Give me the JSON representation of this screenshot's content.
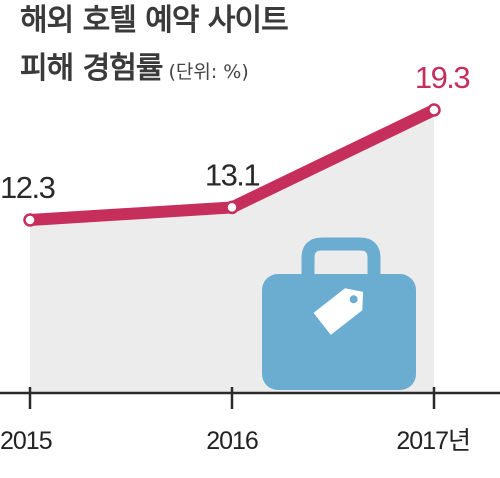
{
  "title": {
    "line1": "해외 호텔 예약 사이트",
    "line2": "피해 경험률",
    "unit": "(단위: %)"
  },
  "colors": {
    "line": "#c62e5c",
    "area": "#ececec",
    "axis": "#2a2a2a",
    "label_normal": "#2a2a2a",
    "label_highlight": "#c62e5c",
    "icon": "#6aadd0"
  },
  "icon": "suitcase-with-tag-icon",
  "chart_data": {
    "type": "line",
    "x": [
      "2015",
      "2016",
      "2017년"
    ],
    "series": [
      {
        "values": [
          12.3,
          13.1,
          19.3
        ]
      }
    ],
    "highlight_last": true
  }
}
